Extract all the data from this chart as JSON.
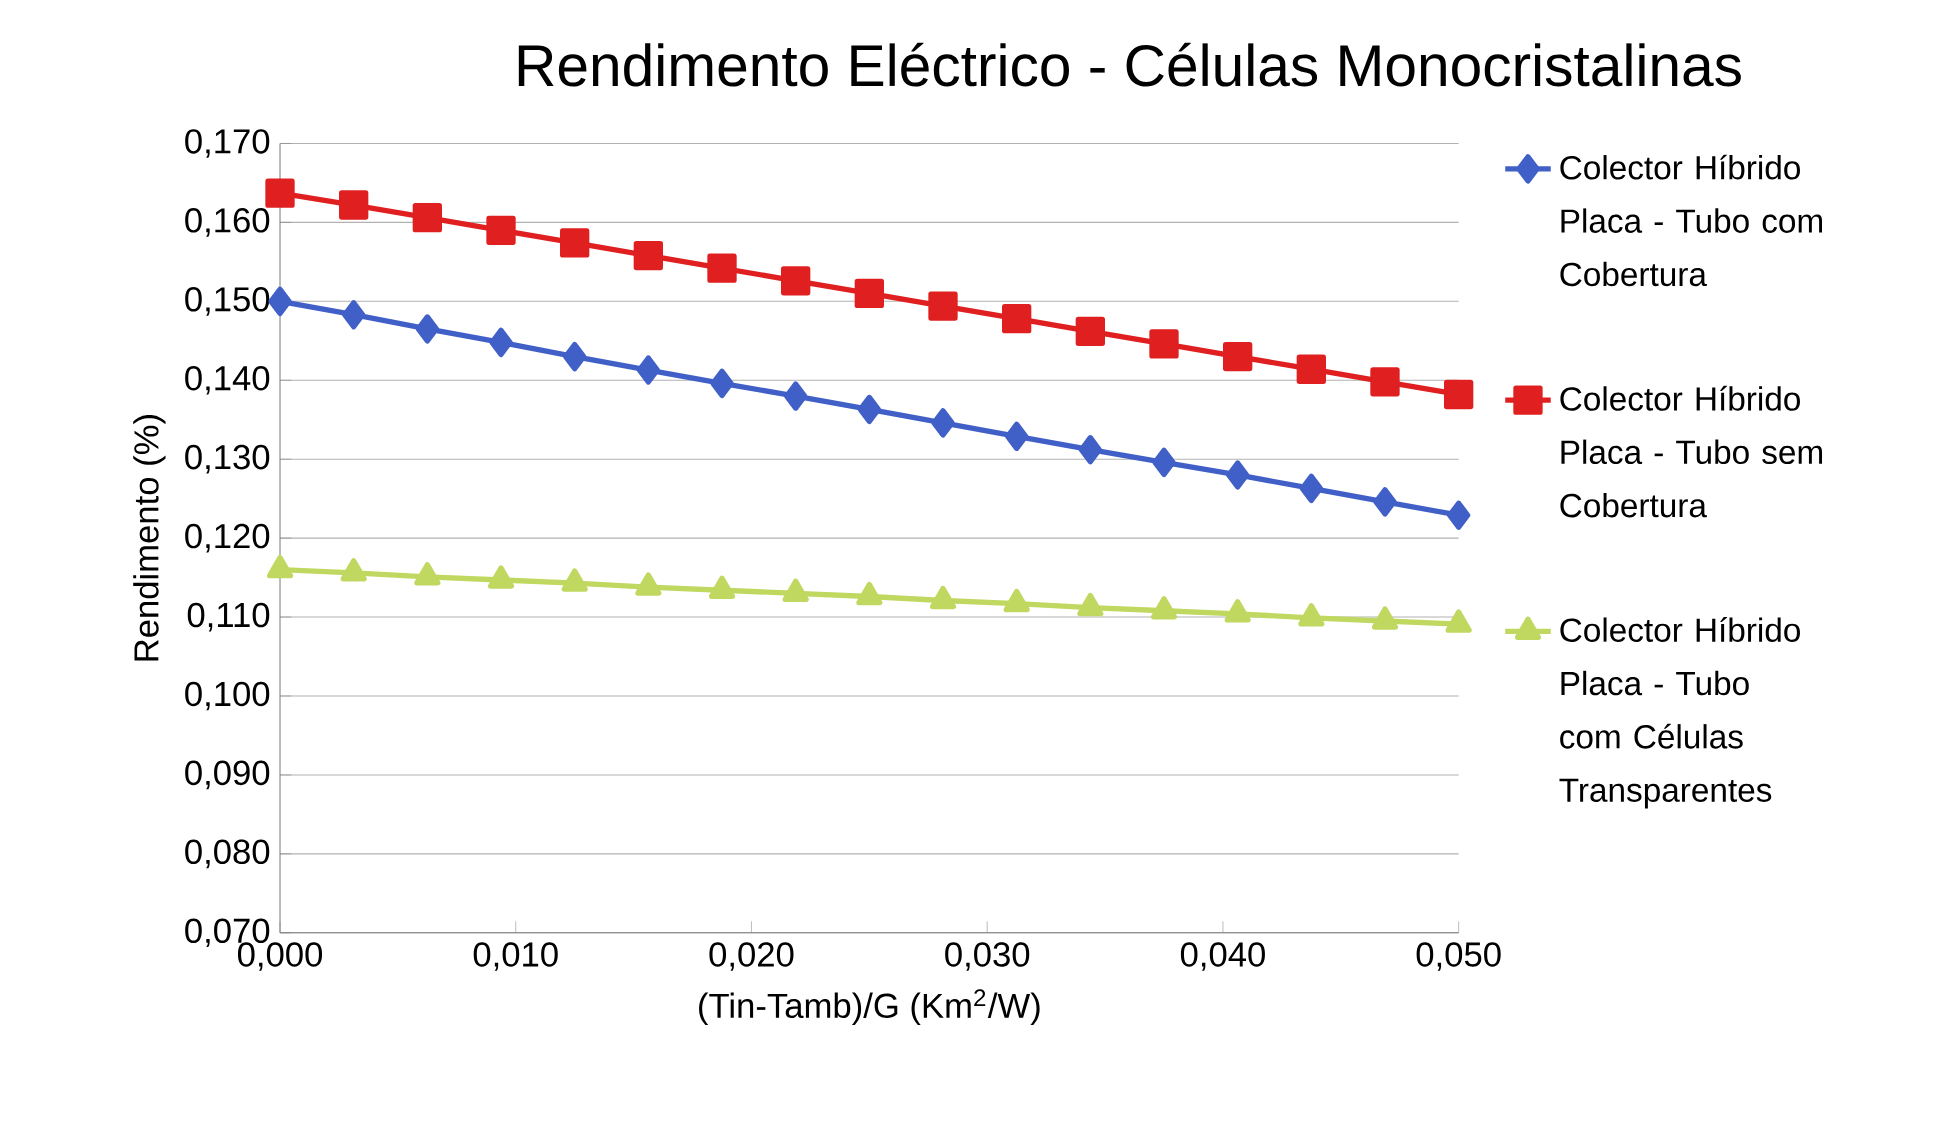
{
  "chart_data": {
    "type": "line",
    "title": "Rendimento Eléctrico - Células Monocristalinas",
    "xlabel": "(Tin-Tamb)/G (Km$^{2}$/W)",
    "ylabel": "Rendimento (%)",
    "x": [
      0,
      0.003125,
      0.00625,
      0.009375,
      0.0125,
      0.015625,
      0.01875,
      0.021875,
      0.025,
      0.028125,
      0.03125,
      0.034375,
      0.0375,
      0.040625,
      0.04375,
      0.046875,
      0.05
    ],
    "series": [
      {
        "name": "Colector Híbrido Placa - Tubo com Cobertura",
        "color": "#4060c8",
        "marker": "diamond",
        "values": [
          0.15,
          0.1483,
          0.1465,
          0.1448,
          0.143,
          0.1413,
          0.1396,
          0.138,
          0.1363,
          0.1346,
          0.1329,
          0.1312,
          0.1296,
          0.128,
          0.1263,
          0.1246,
          0.1229
        ]
      },
      {
        "name": "Colector Híbrido Placa - Tubo sem Cobertura",
        "color": "#e02020",
        "marker": "square",
        "values": [
          0.1637,
          0.1622,
          0.1606,
          0.159,
          0.1574,
          0.1558,
          0.1542,
          0.1526,
          0.151,
          0.1494,
          0.1478,
          0.1462,
          0.1446,
          0.143,
          0.1414,
          0.1398,
          0.1382
        ]
      },
      {
        "name": "Colector Híbrido Placa - Tubo com Células Transparentes",
        "color": "#c0d860",
        "marker": "triangle",
        "values": [
          0.116,
          0.1156,
          0.1151,
          0.1147,
          0.1143,
          0.1138,
          0.1134,
          0.113,
          0.1126,
          0.1121,
          0.1117,
          0.1112,
          0.1108,
          0.1104,
          0.1099,
          0.1095,
          0.1091
        ]
      }
    ],
    "xlim": [
      0,
      0.05
    ],
    "xticks": [
      {
        "value": 0,
        "label": "0,000"
      },
      {
        "value": 0.01,
        "label": "0,010"
      },
      {
        "value": 0.02,
        "label": "0,020"
      },
      {
        "value": 0.03,
        "label": "0,030"
      },
      {
        "value": 0.04,
        "label": "0,040"
      },
      {
        "value": 0.05,
        "label": "0,050"
      }
    ],
    "ylim": [
      0.07,
      0.17
    ],
    "yticks": [
      {
        "value": 0.07,
        "label": "0,070"
      },
      {
        "value": 0.08,
        "label": "0,080"
      },
      {
        "value": 0.09,
        "label": "0,090"
      },
      {
        "value": 0.1,
        "label": "0,100"
      },
      {
        "value": 0.11,
        "label": "0,110"
      },
      {
        "value": 0.12,
        "label": "0,120"
      },
      {
        "value": 0.13,
        "label": "0,130"
      },
      {
        "value": 0.14,
        "label": "0,140"
      },
      {
        "value": 0.15,
        "label": "0,150"
      },
      {
        "value": 0.16,
        "label": "0,160"
      },
      {
        "value": 0.17,
        "label": "0,170"
      }
    ],
    "grid": "y",
    "legend": "right",
    "line_style": "solid"
  }
}
